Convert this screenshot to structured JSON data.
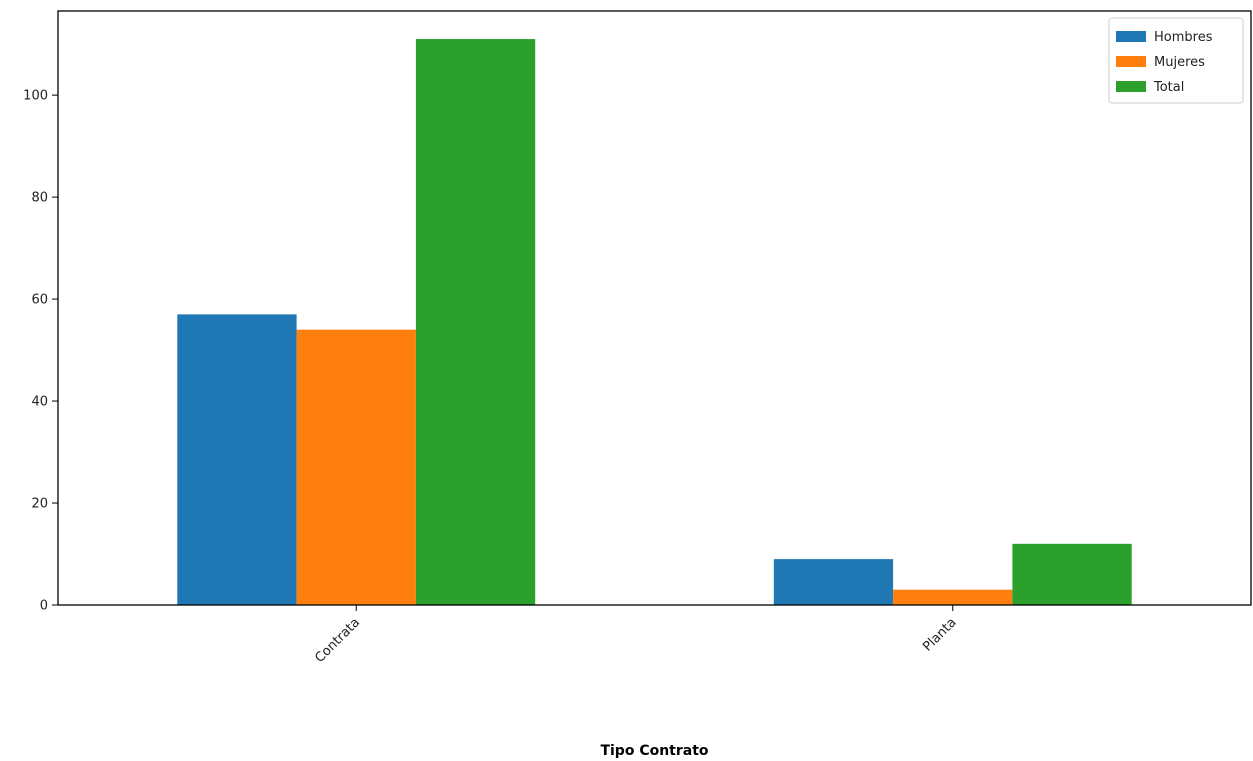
{
  "chart_data": {
    "type": "bar",
    "title": "",
    "xlabel": "Tipo Contrato",
    "ylabel": "",
    "categories": [
      "Contrata",
      "Planta"
    ],
    "series": [
      {
        "name": "Hombres",
        "values": [
          57,
          9
        ],
        "color": "#1f77b4"
      },
      {
        "name": "Mujeres",
        "values": [
          54,
          3
        ],
        "color": "#ff7f0e"
      },
      {
        "name": "Total",
        "values": [
          111,
          12
        ],
        "color": "#2ca02c"
      }
    ],
    "ylim": [
      0,
      116.5
    ],
    "yticks": [
      0,
      20,
      40,
      60,
      80,
      100
    ],
    "grid": false,
    "legend_position": "top-right"
  }
}
